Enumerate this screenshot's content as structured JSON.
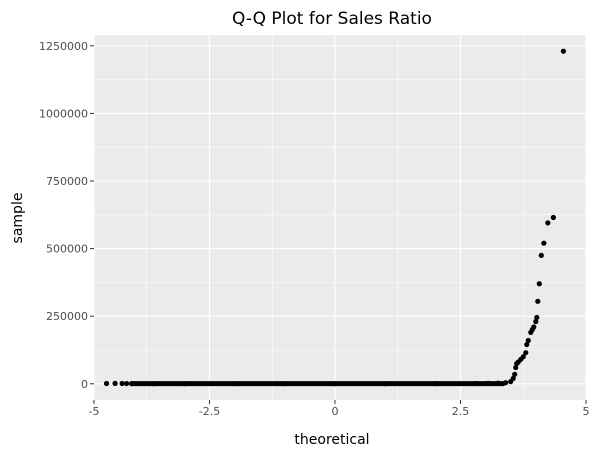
{
  "chart_data": {
    "type": "scatter",
    "title": "Q-Q Plot for Sales Ratio",
    "xlabel": "theoretical",
    "ylabel": "sample",
    "xlim": [
      -4.8,
      5.0
    ],
    "ylim": [
      -60000,
      1290000
    ],
    "x_ticks": [
      -5,
      -2.5,
      0,
      2.5,
      5
    ],
    "x_tick_labels": [
      "-5",
      "-2.5",
      "0",
      "2.5",
      "5"
    ],
    "y_ticks": [
      0,
      250000,
      500000,
      750000,
      1000000,
      1250000
    ],
    "y_tick_labels": [
      "0",
      "250000",
      "500000",
      "750000",
      "1000000",
      "1250000"
    ],
    "grid": true,
    "legend": "none",
    "colors": {
      "panel": "#ebebeb",
      "grid": "#ffffff",
      "point": "#000000"
    },
    "series": [
      {
        "points": [
          [
            -4.55,
            1000
          ],
          [
            -4.38,
            1500
          ],
          [
            -4.24,
            1000
          ],
          [
            -4.15,
            800
          ],
          [
            -4.05,
            600
          ],
          [
            -3.6,
            400
          ],
          [
            -3.0,
            300
          ],
          [
            -2.0,
            300
          ],
          [
            -1.0,
            300
          ],
          [
            0.0,
            400
          ],
          [
            1.0,
            400
          ],
          [
            2.0,
            500
          ],
          [
            2.8,
            1000
          ],
          [
            3.05,
            1500
          ],
          [
            3.25,
            2500
          ],
          [
            3.4,
            4000
          ],
          [
            3.5,
            8000
          ],
          [
            3.55,
            20000
          ],
          [
            3.58,
            35000
          ],
          [
            3.6,
            60000
          ],
          [
            3.62,
            75000
          ],
          [
            3.65,
            80000
          ],
          [
            3.7,
            90000
          ],
          [
            3.75,
            100000
          ],
          [
            3.8,
            115000
          ],
          [
            3.82,
            145000
          ],
          [
            3.85,
            160000
          ],
          [
            3.9,
            190000
          ],
          [
            3.93,
            200000
          ],
          [
            3.96,
            210000
          ],
          [
            4.0,
            230000
          ],
          [
            4.02,
            245000
          ],
          [
            4.04,
            305000
          ],
          [
            4.07,
            370000
          ],
          [
            4.11,
            475000
          ],
          [
            4.16,
            520000
          ],
          [
            4.24,
            595000
          ],
          [
            4.35,
            615000
          ],
          [
            4.55,
            1230000
          ]
        ]
      }
    ]
  }
}
